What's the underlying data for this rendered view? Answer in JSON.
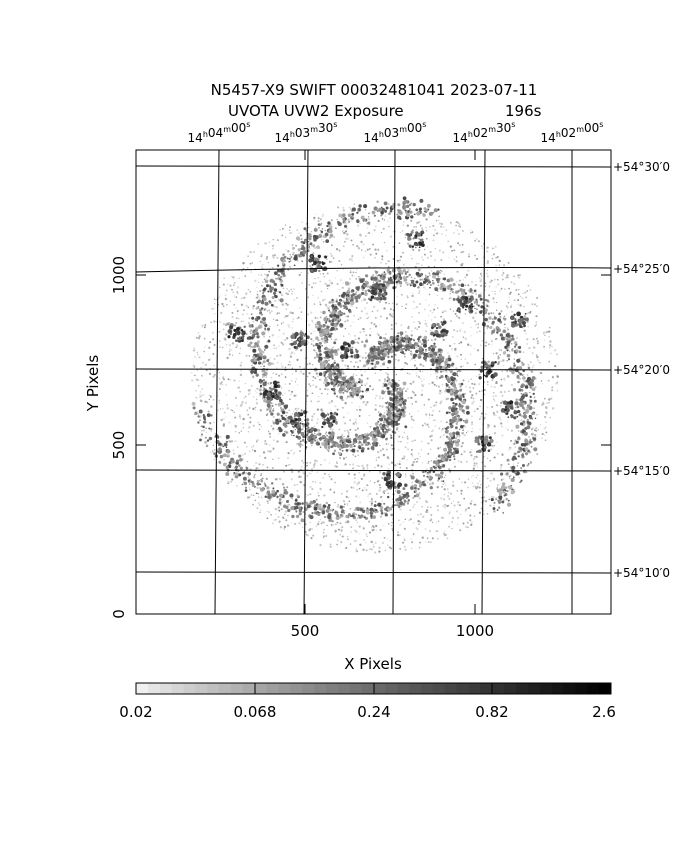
{
  "title": {
    "line1": "N5457-X9 SWIFT 00032481041 2023-07-11",
    "line2_left": "UVOTA UVW2 Exposure",
    "line2_right": "196s"
  },
  "axes": {
    "xlabel": "X Pixels",
    "ylabel": "Y Pixels",
    "x_ticks": [
      "500",
      "1000"
    ],
    "y_ticks": [
      "0",
      "500",
      "1000"
    ],
    "ra_labels": [
      {
        "h": "14",
        "m": "04",
        "s": "00"
      },
      {
        "h": "14",
        "m": "03",
        "s": "30"
      },
      {
        "h": "14",
        "m": "03",
        "s": "00"
      },
      {
        "h": "14",
        "m": "02",
        "s": "30"
      },
      {
        "h": "14",
        "m": "02",
        "s": "00"
      }
    ],
    "dec_labels": [
      {
        "deg": "+54",
        "min": "30",
        "sec": "0"
      },
      {
        "deg": "+54",
        "min": "25",
        "sec": "0"
      },
      {
        "deg": "+54",
        "min": "20",
        "sec": "0"
      },
      {
        "deg": "+54",
        "min": "15",
        "sec": "0"
      },
      {
        "deg": "+54",
        "min": "10",
        "sec": "0"
      }
    ],
    "x_range": [
      0,
      1400
    ],
    "y_range": [
      0,
      1400
    ]
  },
  "colorbar": {
    "labels": [
      "0.02",
      "0.068",
      "0.24",
      "0.82",
      "2.6"
    ],
    "scale": "log",
    "colormap": "grayscale-inverted"
  },
  "image": {
    "description_icon": "galaxy-image",
    "colors": {
      "background": "#ffffff",
      "frame": "#000000",
      "grid": "#000000"
    }
  }
}
